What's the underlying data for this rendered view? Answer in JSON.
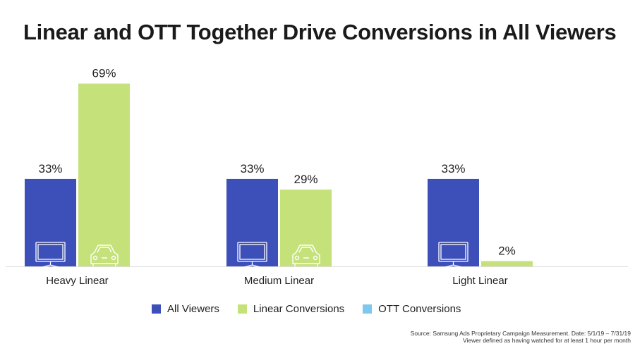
{
  "chart_data": {
    "type": "bar",
    "title": "Linear and OTT Together Drive Conversions in All Viewers",
    "categories": [
      "Heavy Linear",
      "Medium Linear",
      "Light Linear"
    ],
    "series": [
      {
        "name": "All Viewers",
        "color": "#3d4fb9",
        "values": [
          33,
          33,
          33
        ],
        "labels": [
          "33%",
          "33%",
          "33%"
        ],
        "icon": "tv-icon"
      },
      {
        "name": "Linear Conversions",
        "color": "#c5e17a",
        "values": [
          69,
          29,
          2
        ],
        "labels": [
          "69%",
          "29%",
          "2%"
        ],
        "icon": "car-icon"
      },
      {
        "name": "OTT Conversions",
        "color": "#7ec8ef",
        "values": [
          null,
          null,
          null
        ],
        "labels": []
      }
    ],
    "ylim": [
      0,
      75
    ],
    "grid": false,
    "legend_position": "bottom"
  },
  "source": {
    "line1": "Source: Samsung Ads Proprietary Campaign Measurement. Date:  5/1/19 – 7/31/19",
    "line2": "Viewer defined as having watched for at least 1 hour per month"
  }
}
